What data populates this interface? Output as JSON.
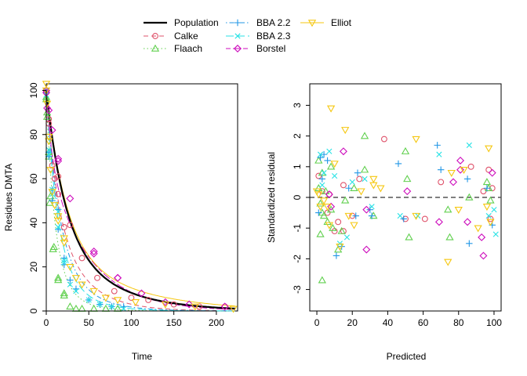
{
  "colors": {
    "population": "#000000",
    "calke": "#df536b",
    "flaach": "#61d04f",
    "bba22": "#2297e6",
    "bba23": "#28e2e5",
    "borstel": "#cd0bbc",
    "elliot": "#f5c710",
    "refline": "#555555"
  },
  "legend": {
    "entries": [
      {
        "key": "population",
        "label": "Population",
        "line": "solid",
        "marker": "none"
      },
      {
        "key": "calke",
        "label": "Calke",
        "line": "dashed",
        "marker": "circle"
      },
      {
        "key": "flaach",
        "label": "Flaach",
        "line": "dotted",
        "marker": "triangle-up"
      },
      {
        "key": "bba22",
        "label": "BBA 2.2",
        "line": "dotdash",
        "marker": "plus"
      },
      {
        "key": "bba23",
        "label": "BBA 2.3",
        "line": "longdash",
        "marker": "cross"
      },
      {
        "key": "borstel",
        "label": "Borstel",
        "line": "twodash",
        "marker": "diamond"
      },
      {
        "key": "elliot",
        "label": "Elliot",
        "line": "solid",
        "marker": "triangle-down"
      }
    ]
  },
  "chart_data": [
    {
      "type": "scatter",
      "subtype": "decline-curves",
      "xlabel": "Time",
      "ylabel": "Residues DMTA",
      "xlim": [
        0,
        225
      ],
      "ylim": [
        0,
        103
      ],
      "xticks": [
        0,
        50,
        100,
        150,
        200
      ],
      "yticks": [
        0,
        20,
        40,
        60,
        80,
        100
      ],
      "curves": [
        {
          "key": "population",
          "model": "exp2",
          "params": {
            "c0": 100,
            "g": 0.62,
            "k1": 0.047,
            "k2": 0.016
          }
        },
        {
          "key": "calke",
          "model": "exp2",
          "params": {
            "c0": 100,
            "g": 0.5,
            "k1": 0.08,
            "k2": 0.028
          }
        },
        {
          "key": "flaach",
          "model": "exp2",
          "params": {
            "c0": 97,
            "g": 0.7,
            "k1": 0.11,
            "k2": 0.045
          }
        },
        {
          "key": "bba22",
          "model": "exp2",
          "params": {
            "c0": 99,
            "g": 0.65,
            "k1": 0.07,
            "k2": 0.03
          }
        },
        {
          "key": "bba23",
          "model": "exp2",
          "params": {
            "c0": 99,
            "g": 0.68,
            "k1": 0.08,
            "k2": 0.034
          }
        },
        {
          "key": "borstel",
          "model": "exp2",
          "params": {
            "c0": 100,
            "g": 0.3,
            "k1": 0.15,
            "k2": 0.021
          }
        },
        {
          "key": "elliot",
          "model": "exp2",
          "params": {
            "c0": 101,
            "g": 0.68,
            "k1": 0.045,
            "k2": 0.012
          }
        }
      ],
      "series": [
        {
          "key": "calke",
          "points": [
            [
              0,
              100
            ],
            [
              0,
              99
            ],
            [
              3,
              85
            ],
            [
              3,
              87
            ],
            [
              7,
              66
            ],
            [
              10,
              60
            ],
            [
              14,
              53
            ],
            [
              14,
              61
            ],
            [
              21,
              38
            ],
            [
              28,
              39
            ],
            [
              42,
              24
            ],
            [
              60,
              15
            ],
            [
              80,
              9
            ],
            [
              100,
              6
            ],
            [
              120,
              5
            ],
            [
              150,
              3
            ],
            [
              180,
              2
            ],
            [
              210,
              2
            ]
          ]
        },
        {
          "key": "flaach",
          "points": [
            [
              0,
              97
            ],
            [
              0,
              96
            ],
            [
              1,
              88
            ],
            [
              1,
              90
            ],
            [
              3,
              72
            ],
            [
              3,
              70
            ],
            [
              4,
              49
            ],
            [
              5,
              52
            ],
            [
              8,
              28
            ],
            [
              9,
              29
            ],
            [
              14,
              15
            ],
            [
              14,
              14
            ],
            [
              21,
              8
            ],
            [
              21,
              7
            ],
            [
              28,
              2
            ],
            [
              35,
              1
            ],
            [
              42,
              1
            ],
            [
              56,
              1
            ],
            [
              70,
              1
            ],
            [
              84,
              1
            ]
          ]
        },
        {
          "key": "bba22",
          "points": [
            [
              0,
              99
            ],
            [
              0,
              100
            ],
            [
              3,
              72
            ],
            [
              3,
              70
            ],
            [
              7,
              55
            ],
            [
              7,
              50
            ],
            [
              14,
              46
            ],
            [
              14,
              37
            ],
            [
              21,
              24
            ],
            [
              21,
              21
            ],
            [
              28,
              14
            ],
            [
              35,
              10
            ],
            [
              50,
              5
            ],
            [
              63,
              3
            ],
            [
              77,
              2
            ],
            [
              91,
              2
            ]
          ]
        },
        {
          "key": "bba23",
          "points": [
            [
              0,
              100
            ],
            [
              0,
              98
            ],
            [
              3,
              71
            ],
            [
              3,
              73
            ],
            [
              7,
              55
            ],
            [
              7,
              53
            ],
            [
              14,
              45
            ],
            [
              14,
              38
            ],
            [
              21,
              22
            ],
            [
              21,
              23
            ],
            [
              28,
              12
            ],
            [
              35,
              9
            ],
            [
              50,
              5
            ],
            [
              63,
              3
            ],
            [
              77,
              2
            ],
            [
              91,
              1
            ]
          ]
        },
        {
          "key": "borstel",
          "points": [
            [
              0,
              100
            ],
            [
              0,
              99
            ],
            [
              1,
              92
            ],
            [
              3,
              91
            ],
            [
              7,
              82
            ],
            [
              14,
              69
            ],
            [
              14,
              68
            ],
            [
              28,
              51
            ],
            [
              56,
              27
            ],
            [
              56,
              26
            ],
            [
              84,
              15
            ],
            [
              84,
              15
            ],
            [
              112,
              8
            ],
            [
              140,
              4
            ],
            [
              168,
              3
            ],
            [
              210,
              2
            ]
          ]
        },
        {
          "key": "elliot",
          "points": [
            [
              0,
              103
            ],
            [
              0,
              100
            ],
            [
              1,
              94
            ],
            [
              3,
              79
            ],
            [
              3,
              77
            ],
            [
              5,
              64
            ],
            [
              7,
              54
            ],
            [
              10,
              48
            ],
            [
              14,
              43
            ],
            [
              14,
              41
            ],
            [
              21,
              33
            ],
            [
              21,
              31
            ],
            [
              28,
              20
            ],
            [
              35,
              15
            ],
            [
              42,
              12
            ],
            [
              56,
              9
            ],
            [
              70,
              6
            ],
            [
              84,
              5
            ],
            [
              105,
              4
            ],
            [
              140,
              3
            ],
            [
              175,
              2
            ],
            [
              220,
              1
            ]
          ]
        }
      ]
    },
    {
      "type": "scatter",
      "subtype": "residuals",
      "xlabel": "Predicted",
      "ylabel": "Standardized residual",
      "xlim": [
        -4,
        104
      ],
      "ylim": [
        -3.7,
        3.7
      ],
      "xticks": [
        0,
        20,
        40,
        60,
        80,
        100
      ],
      "yticks": [
        -3,
        -2,
        -1,
        0,
        1,
        2,
        3
      ],
      "reference_line": 0,
      "series": [
        {
          "key": "calke",
          "points": [
            [
              1,
              0.7
            ],
            [
              3,
              0.2
            ],
            [
              6,
              -0.5
            ],
            [
              7,
              0.1
            ],
            [
              10,
              -1.1
            ],
            [
              12,
              -0.8
            ],
            [
              15,
              0.4
            ],
            [
              15,
              -1.1
            ],
            [
              20,
              -0.6
            ],
            [
              24,
              0.6
            ],
            [
              38,
              1.9
            ],
            [
              50,
              -0.7
            ],
            [
              61,
              -0.7
            ],
            [
              70,
              0.5
            ],
            [
              87,
              1.0
            ],
            [
              94,
              0.2
            ],
            [
              97,
              0.9
            ],
            [
              98,
              -0.7
            ],
            [
              99,
              0.3
            ]
          ]
        },
        {
          "key": "flaach",
          "points": [
            [
              1,
              1.2
            ],
            [
              1,
              0.3
            ],
            [
              2,
              -0.2
            ],
            [
              2,
              -1.2
            ],
            [
              3,
              -2.7
            ],
            [
              3,
              -0.5
            ],
            [
              3,
              0.8
            ],
            [
              4,
              -0.6
            ],
            [
              5,
              0.2
            ],
            [
              6,
              -0.8
            ],
            [
              8,
              1.0
            ],
            [
              8,
              -0.4
            ],
            [
              9,
              -1.0
            ],
            [
              12,
              -1.7
            ],
            [
              14,
              -1.1
            ],
            [
              16,
              -0.1
            ],
            [
              21,
              0.3
            ],
            [
              27,
              2.0
            ],
            [
              27,
              0.9
            ],
            [
              32,
              -0.6
            ],
            [
              50,
              1.5
            ],
            [
              51,
              0.6
            ],
            [
              52,
              -1.3
            ],
            [
              74,
              -0.4
            ],
            [
              75,
              -1.3
            ],
            [
              86,
              0.0
            ],
            [
              96,
              0.5
            ],
            [
              97,
              0.3
            ],
            [
              98,
              -0.1
            ]
          ]
        },
        {
          "key": "bba22",
          "points": [
            [
              1,
              -0.5
            ],
            [
              2,
              1.3
            ],
            [
              3,
              0.6
            ],
            [
              4,
              1.4
            ],
            [
              6,
              1.2
            ],
            [
              11,
              -1.9
            ],
            [
              14,
              -1.6
            ],
            [
              18,
              0.3
            ],
            [
              22,
              -0.6
            ],
            [
              23,
              0.8
            ],
            [
              30,
              -0.4
            ],
            [
              31,
              -0.6
            ],
            [
              46,
              1.1
            ],
            [
              49,
              -0.7
            ],
            [
              68,
              1.7
            ],
            [
              70,
              0.9
            ],
            [
              85,
              0.6
            ],
            [
              86,
              -1.5
            ],
            [
              96,
              0.3
            ],
            [
              99,
              -0.9
            ]
          ]
        },
        {
          "key": "bba23",
          "points": [
            [
              2,
              1.4
            ],
            [
              3,
              0.4
            ],
            [
              4,
              0.8
            ],
            [
              7,
              1.5
            ],
            [
              10,
              0.7
            ],
            [
              13,
              -1.5
            ],
            [
              17,
              -1.3
            ],
            [
              20,
              0.5
            ],
            [
              27,
              0.6
            ],
            [
              31,
              -0.3
            ],
            [
              47,
              -0.6
            ],
            [
              57,
              -0.6
            ],
            [
              69,
              1.4
            ],
            [
              86,
              1.7
            ],
            [
              97,
              -0.6
            ],
            [
              100,
              -0.4
            ],
            [
              101,
              -1.2
            ]
          ]
        },
        {
          "key": "borstel",
          "points": [
            [
              7,
              0.1
            ],
            [
              8,
              -0.3
            ],
            [
              15,
              1.5
            ],
            [
              28,
              -0.4
            ],
            [
              28,
              -1.7
            ],
            [
              51,
              0.2
            ],
            [
              69,
              -0.8
            ],
            [
              77,
              0.5
            ],
            [
              81,
              1.2
            ],
            [
              81,
              0.9
            ],
            [
              85,
              -0.8
            ],
            [
              93,
              -1.3
            ],
            [
              94,
              -1.9
            ],
            [
              99,
              0.8
            ]
          ]
        },
        {
          "key": "elliot",
          "points": [
            [
              0,
              0.2
            ],
            [
              1,
              0.1
            ],
            [
              2,
              -0.3
            ],
            [
              4,
              -0.1
            ],
            [
              6,
              -0.3
            ],
            [
              7,
              -0.9
            ],
            [
              8,
              2.9
            ],
            [
              10,
              1.1
            ],
            [
              13,
              -1.6
            ],
            [
              16,
              2.2
            ],
            [
              18,
              -0.6
            ],
            [
              21,
              -0.9
            ],
            [
              25,
              0.2
            ],
            [
              32,
              0.6
            ],
            [
              32,
              0.4
            ],
            [
              36,
              0.3
            ],
            [
              56,
              1.9
            ],
            [
              56,
              -0.6
            ],
            [
              74,
              -2.1
            ],
            [
              76,
              0.8
            ],
            [
              80,
              -0.4
            ],
            [
              83,
              0.9
            ],
            [
              91,
              -1.0
            ],
            [
              96,
              -0.3
            ],
            [
              97,
              1.6
            ],
            [
              98,
              -0.8
            ]
          ]
        }
      ]
    }
  ]
}
